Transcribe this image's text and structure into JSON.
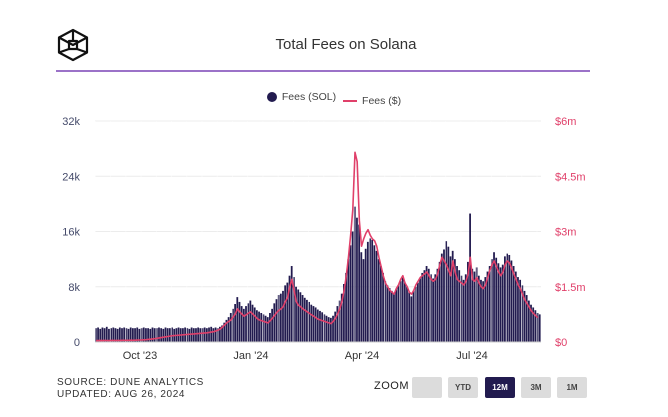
{
  "header": {
    "title": "Total Fees on Solana",
    "logo_icon": "cube-logo-icon"
  },
  "legend": [
    {
      "label": "Fees (SOL)",
      "marker": "dot",
      "color": "#221b4f"
    },
    {
      "label": "Fees ($)",
      "marker": "line",
      "color": "#e0406a"
    }
  ],
  "footer": {
    "source": "SOURCE: DUNE ANALYTICS",
    "updated": "UPDATED: AUG 26, 2024"
  },
  "zoom": {
    "label": "ZOOM",
    "buttons": [
      {
        "label": "",
        "active": false
      },
      {
        "label": "YTD",
        "active": false
      },
      {
        "label": "12M",
        "active": true
      },
      {
        "label": "3M",
        "active": false
      },
      {
        "label": "1M",
        "active": false
      }
    ]
  },
  "chart_data": {
    "type": "bar+line",
    "title": "Total Fees on Solana",
    "x_range": [
      "2023-08-26",
      "2024-08-26"
    ],
    "xticks": [
      "Oct '23",
      "Jan '24",
      "Apr '24",
      "Jul '24"
    ],
    "y_left": {
      "label": "Fees (SOL)",
      "ticks": [
        "0",
        "8k",
        "16k",
        "24k",
        "32k"
      ],
      "range": [
        0,
        32000
      ]
    },
    "y_right": {
      "label": "Fees ($)",
      "ticks": [
        "$0",
        "$1.5m",
        "$3m",
        "$4.5m",
        "$6m"
      ],
      "range": [
        0,
        6000000
      ]
    },
    "grid": true,
    "legend_position": "top-center",
    "series": [
      {
        "name": "Fees (SOL)",
        "type": "bar",
        "color": "#221b4f",
        "values": [
          2000,
          2100,
          1900,
          2100,
          2000,
          2200,
          1900,
          2000,
          2100,
          2000,
          1900,
          2100,
          2000,
          2100,
          2000,
          1900,
          2100,
          2000,
          2000,
          2100,
          1900,
          2000,
          2100,
          2000,
          2000,
          1900,
          2100,
          2000,
          2000,
          2100,
          2000,
          1900,
          2100,
          2000,
          2000,
          2100,
          1900,
          2000,
          2100,
          2000,
          2000,
          2100,
          2000,
          1900,
          2100,
          2000,
          2000,
          2100,
          2000,
          2000,
          2100,
          2000,
          2100,
          2200,
          2000,
          2100,
          2000,
          2200,
          2400,
          2800,
          3200,
          3600,
          4200,
          4800,
          5500,
          6500,
          5800,
          5200,
          4800,
          5200,
          5600,
          6000,
          5400,
          5000,
          4600,
          4400,
          4200,
          4000,
          3800,
          3600,
          4200,
          4800,
          5600,
          6200,
          6800,
          7000,
          7400,
          8200,
          8600,
          9600,
          11000,
          9400,
          8000,
          7600,
          7200,
          6800,
          6400,
          6100,
          5800,
          5400,
          5200,
          5000,
          4700,
          4500,
          4300,
          4000,
          3800,
          3600,
          3500,
          3800,
          4400,
          5200,
          6000,
          7000,
          8400,
          10000,
          12000,
          14000,
          16000,
          19600,
          18000,
          17000,
          13000,
          12000,
          13500,
          14500,
          15000,
          14800,
          14000,
          13200,
          12000,
          11000,
          10000,
          8800,
          8200,
          7800,
          7400,
          7000,
          7600,
          8200,
          8800,
          9400,
          8600,
          8000,
          7200,
          6600,
          7400,
          8000,
          8600,
          9200,
          10000,
          10400,
          11000,
          10600,
          9800,
          9200,
          9800,
          10600,
          11600,
          12800,
          13400,
          14600,
          13800,
          12400,
          13200,
          12000,
          11000,
          10400,
          9600,
          9000,
          9800,
          11600,
          18600,
          10600,
          10200,
          10800,
          9600,
          9000,
          8800,
          9400,
          10200,
          11000,
          12000,
          13000,
          12200,
          11400,
          10800,
          11200,
          12400,
          12800,
          12600,
          11800,
          11000,
          10200,
          9400,
          9000,
          8200,
          7400,
          6800,
          6000,
          5400,
          5000,
          4600,
          4200,
          4000
        ]
      },
      {
        "name": "Fees ($)",
        "type": "line",
        "color": "#e0406a",
        "values": [
          40000,
          40000,
          42000,
          40000,
          42000,
          41000,
          40000,
          42000,
          43000,
          42000,
          44000,
          43000,
          45000,
          46000,
          45000,
          47000,
          48000,
          47000,
          50000,
          52000,
          54000,
          56000,
          60000,
          64000,
          70000,
          76000,
          84000,
          92000,
          100000,
          110000,
          120000,
          130000,
          140000,
          150000,
          160000,
          170000,
          175000,
          180000,
          185000,
          190000,
          195000,
          200000,
          205000,
          210000,
          215000,
          220000,
          225000,
          230000,
          235000,
          240000,
          245000,
          250000,
          260000,
          270000,
          280000,
          300000,
          320000,
          350000,
          400000,
          460000,
          520000,
          560000,
          600000,
          680000,
          760000,
          900000,
          820000,
          760000,
          700000,
          740000,
          780000,
          820000,
          760000,
          700000,
          640000,
          600000,
          580000,
          560000,
          540000,
          520000,
          580000,
          640000,
          720000,
          800000,
          860000,
          900000,
          960000,
          1100000,
          1200000,
          1500000,
          1700000,
          1400000,
          1100000,
          1000000,
          960000,
          900000,
          860000,
          820000,
          780000,
          740000,
          700000,
          660000,
          620000,
          600000,
          580000,
          560000,
          540000,
          520000,
          500000,
          560000,
          640000,
          760000,
          900000,
          1100000,
          1400000,
          1800000,
          2300000,
          2900000,
          3600000,
          5150000,
          4900000,
          3300000,
          2600000,
          2800000,
          2950000,
          3050000,
          2900000,
          2800000,
          2750000,
          2600000,
          2300000,
          2050000,
          1800000,
          1600000,
          1500000,
          1400000,
          1350000,
          1300000,
          1450000,
          1550000,
          1700000,
          1800000,
          1600000,
          1500000,
          1350000,
          1300000,
          1400000,
          1550000,
          1650000,
          1750000,
          1800000,
          1850000,
          1900000,
          1800000,
          1700000,
          1650000,
          1700000,
          1850000,
          2100000,
          2300000,
          2200000,
          2100000,
          1950000,
          1800000,
          2200000,
          1900000,
          1700000,
          1650000,
          1600000,
          1550000,
          1650000,
          1850000,
          2300000,
          1700000,
          1650000,
          1750000,
          1600000,
          1500000,
          1450000,
          1550000,
          1750000,
          1950000,
          2100000,
          2200000,
          2050000,
          1900000,
          1800000,
          1900000,
          2100000,
          2200000,
          2150000,
          2000000,
          1850000,
          1700000,
          1550000,
          1450000,
          1300000,
          1150000,
          1050000,
          950000,
          850000,
          780000,
          720000,
          660000
        ]
      }
    ]
  }
}
